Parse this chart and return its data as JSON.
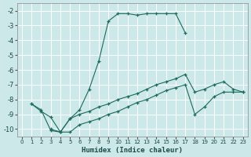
{
  "xlabel": "Humidex (Indice chaleur)",
  "bg_color": "#cce8e8",
  "grid_color": "#b0d0d0",
  "line_color": "#1a6b5a",
  "xlim": [
    -0.5,
    23.5
  ],
  "ylim": [
    -10.5,
    -1.5
  ],
  "xticks": [
    0,
    1,
    2,
    3,
    4,
    5,
    6,
    7,
    8,
    9,
    10,
    11,
    12,
    13,
    14,
    15,
    16,
    17,
    18,
    19,
    20,
    21,
    22,
    23
  ],
  "yticks": [
    -10,
    -9,
    -8,
    -7,
    -6,
    -5,
    -4,
    -3,
    -2
  ],
  "curve1_x": [
    1,
    2,
    3,
    4,
    5,
    6,
    7,
    8,
    9,
    10,
    11,
    12,
    13,
    14,
    15,
    16,
    17
  ],
  "curve1_y": [
    -8.3,
    -8.7,
    -10.1,
    -10.2,
    -9.3,
    -8.7,
    -7.3,
    -5.4,
    -2.7,
    -2.2,
    -2.2,
    -2.3,
    -2.2,
    -2.2,
    -2.2,
    -2.2,
    -3.5
  ],
  "curve2_x": [
    1,
    2,
    3,
    4,
    5,
    6,
    7,
    8,
    9,
    10,
    11,
    12,
    13,
    14,
    15,
    16,
    17,
    18,
    19,
    20,
    21,
    22,
    23
  ],
  "curve2_y": [
    -8.3,
    -8.8,
    -9.2,
    -10.2,
    -9.3,
    -9.0,
    -8.8,
    -8.5,
    -8.3,
    -8.0,
    -7.8,
    -7.6,
    -7.3,
    -7.0,
    -6.8,
    -6.6,
    -6.3,
    -7.5,
    -7.3,
    -7.0,
    -6.8,
    -7.3,
    -7.5
  ],
  "curve3_x": [
    3,
    4,
    5,
    6,
    7,
    8,
    9,
    10,
    11,
    12,
    13,
    14,
    15,
    16,
    17,
    18,
    19,
    20,
    21,
    22,
    23
  ],
  "curve3_y": [
    -10.0,
    -10.2,
    -10.2,
    -9.7,
    -9.5,
    -9.3,
    -9.0,
    -8.8,
    -8.5,
    -8.2,
    -8.0,
    -7.7,
    -7.4,
    -7.2,
    -7.0,
    -9.0,
    -8.5,
    -7.8,
    -7.5,
    -7.5,
    -7.5
  ]
}
